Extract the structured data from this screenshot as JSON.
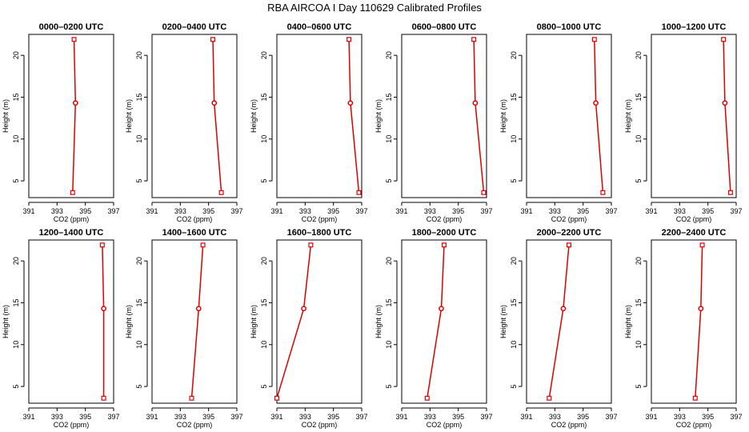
{
  "figure": {
    "title": "RBA AIRCOA I  Day 110629  Calibrated Profiles"
  },
  "chart_data": [
    {
      "type": "line",
      "title": "0000–0200 UTC",
      "xlabel": "CO2 (ppm)",
      "ylabel": "Height (m)",
      "xlim": [
        391,
        397
      ],
      "ylim": [
        3,
        22.5
      ],
      "xticks": [
        391,
        393,
        395,
        397
      ],
      "yticks": [
        5,
        10,
        15,
        20
      ],
      "series": [
        {
          "x": [
            394.2,
            394.3,
            394.1
          ],
          "y": [
            21.9,
            14.3,
            3.6
          ]
        }
      ]
    },
    {
      "type": "line",
      "title": "0200–0400 UTC",
      "xlabel": "CO2 (ppm)",
      "ylabel": "Height (m)",
      "xlim": [
        391,
        397
      ],
      "ylim": [
        3,
        22.5
      ],
      "xticks": [
        391,
        393,
        395,
        397
      ],
      "yticks": [
        5,
        10,
        15,
        20
      ],
      "series": [
        {
          "x": [
            395.3,
            395.4,
            395.9
          ],
          "y": [
            21.9,
            14.3,
            3.6
          ]
        }
      ]
    },
    {
      "type": "line",
      "title": "0400–0600 UTC",
      "xlabel": "CO2 (ppm)",
      "ylabel": "Height (m)",
      "xlim": [
        391,
        397
      ],
      "ylim": [
        3,
        22.5
      ],
      "xticks": [
        391,
        393,
        395,
        397
      ],
      "yticks": [
        5,
        10,
        15,
        20
      ],
      "series": [
        {
          "x": [
            396.1,
            396.2,
            396.8
          ],
          "y": [
            21.9,
            14.3,
            3.6
          ]
        }
      ]
    },
    {
      "type": "line",
      "title": "0600–0800 UTC",
      "xlabel": "CO2 (ppm)",
      "ylabel": "Height (m)",
      "xlim": [
        391,
        397
      ],
      "ylim": [
        3,
        22.5
      ],
      "xticks": [
        391,
        393,
        395,
        397
      ],
      "yticks": [
        5,
        10,
        15,
        20
      ],
      "series": [
        {
          "x": [
            396.1,
            396.2,
            396.8
          ],
          "y": [
            21.9,
            14.3,
            3.6
          ]
        }
      ]
    },
    {
      "type": "line",
      "title": "0800–1000 UTC",
      "xlabel": "CO2 (ppm)",
      "ylabel": "Height (m)",
      "xlim": [
        391,
        397
      ],
      "ylim": [
        3,
        22.5
      ],
      "xticks": [
        391,
        393,
        395,
        397
      ],
      "yticks": [
        5,
        10,
        15,
        20
      ],
      "series": [
        {
          "x": [
            395.8,
            395.9,
            396.4
          ],
          "y": [
            21.9,
            14.3,
            3.6
          ]
        }
      ]
    },
    {
      "type": "line",
      "title": "1000–1200 UTC",
      "xlabel": "CO2 (ppm)",
      "ylabel": "Height (m)",
      "xlim": [
        391,
        397
      ],
      "ylim": [
        3,
        22.5
      ],
      "xticks": [
        391,
        393,
        395,
        397
      ],
      "yticks": [
        5,
        10,
        15,
        20
      ],
      "series": [
        {
          "x": [
            396.1,
            396.2,
            396.6
          ],
          "y": [
            21.9,
            14.3,
            3.6
          ]
        }
      ]
    },
    {
      "type": "line",
      "title": "1200–1400 UTC",
      "xlabel": "CO2 (ppm)",
      "ylabel": "Height (m)",
      "xlim": [
        391,
        397
      ],
      "ylim": [
        3,
        22.5
      ],
      "xticks": [
        391,
        393,
        395,
        397
      ],
      "yticks": [
        5,
        10,
        15,
        20
      ],
      "series": [
        {
          "x": [
            396.2,
            396.3,
            396.3
          ],
          "y": [
            21.9,
            14.3,
            3.6
          ]
        }
      ]
    },
    {
      "type": "line",
      "title": "1400–1600 UTC",
      "xlabel": "CO2 (ppm)",
      "ylabel": "Height (m)",
      "xlim": [
        391,
        397
      ],
      "ylim": [
        3,
        22.5
      ],
      "xticks": [
        391,
        393,
        395,
        397
      ],
      "yticks": [
        5,
        10,
        15,
        20
      ],
      "series": [
        {
          "x": [
            394.6,
            394.3,
            393.8
          ],
          "y": [
            21.9,
            14.3,
            3.6
          ]
        }
      ]
    },
    {
      "type": "line",
      "title": "1600–1800 UTC",
      "xlabel": "CO2 (ppm)",
      "ylabel": "Height (m)",
      "xlim": [
        391,
        397
      ],
      "ylim": [
        3,
        22.5
      ],
      "xticks": [
        391,
        393,
        395,
        397
      ],
      "yticks": [
        5,
        10,
        15,
        20
      ],
      "series": [
        {
          "x": [
            393.4,
            392.9,
            391.0
          ],
          "y": [
            21.9,
            14.3,
            3.6
          ]
        }
      ]
    },
    {
      "type": "line",
      "title": "1800–2000 UTC",
      "xlabel": "CO2 (ppm)",
      "ylabel": "Height (m)",
      "xlim": [
        391,
        397
      ],
      "ylim": [
        3,
        22.5
      ],
      "xticks": [
        391,
        393,
        395,
        397
      ],
      "yticks": [
        5,
        10,
        15,
        20
      ],
      "series": [
        {
          "x": [
            394.0,
            393.8,
            392.8
          ],
          "y": [
            21.9,
            14.3,
            3.6
          ]
        }
      ]
    },
    {
      "type": "line",
      "title": "2000–2200 UTC",
      "xlabel": "CO2 (ppm)",
      "ylabel": "Height (m)",
      "xlim": [
        391,
        397
      ],
      "ylim": [
        3,
        22.5
      ],
      "xticks": [
        391,
        393,
        395,
        397
      ],
      "yticks": [
        5,
        10,
        15,
        20
      ],
      "series": [
        {
          "x": [
            394.0,
            393.6,
            392.6
          ],
          "y": [
            21.9,
            14.3,
            3.6
          ]
        }
      ]
    },
    {
      "type": "line",
      "title": "2200–2400 UTC",
      "xlabel": "CO2 (ppm)",
      "ylabel": "Height (m)",
      "xlim": [
        391,
        397
      ],
      "ylim": [
        3,
        22.5
      ],
      "xticks": [
        391,
        393,
        395,
        397
      ],
      "yticks": [
        5,
        10,
        15,
        20
      ],
      "series": [
        {
          "x": [
            394.6,
            394.5,
            394.1
          ],
          "y": [
            21.9,
            14.3,
            3.6
          ]
        }
      ]
    }
  ],
  "colors": {
    "series": "#dd0000",
    "axes": "#000000",
    "background": "#ffffff"
  },
  "markers": [
    "square",
    "circle",
    "square"
  ]
}
